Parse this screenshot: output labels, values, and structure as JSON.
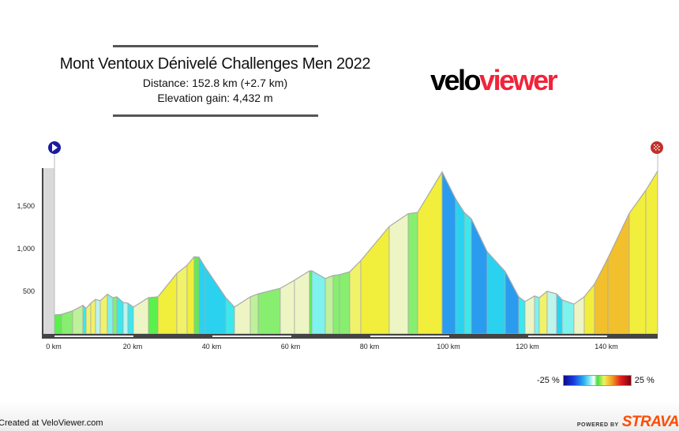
{
  "header": {
    "title": "Mont Ventoux Dénivelé Challenges Men 2022",
    "distance": "Distance: 152.8 km (+2.7 km)",
    "elevation_gain": "Elevation gain: 4,432 m"
  },
  "logo": {
    "part1": "velo",
    "part2": "viewer",
    "color_part2": "#f0243a"
  },
  "markers": {
    "start_icon": "play-icon",
    "finish_icon": "checkered-flag-icon",
    "start_color": "#1a1aa0",
    "finish_color": "#c0302a"
  },
  "chart_data": {
    "type": "area",
    "xlabel": "",
    "ylabel": "",
    "xlim": [
      0,
      152.8
    ],
    "ylim": [
      0,
      1950
    ],
    "x_ticks": [
      0,
      20,
      40,
      60,
      80,
      100,
      120,
      140
    ],
    "x_tick_labels": [
      "0 km",
      "20 km",
      "40 km",
      "60 km",
      "80 km",
      "100 km",
      "120 km",
      "140 km"
    ],
    "y_ticks": [
      500,
      1000,
      1500
    ],
    "y_tick_labels": [
      "500",
      "1,000",
      "1,500"
    ],
    "fill": "colored by gradient",
    "profile": [
      [
        0,
        222
      ],
      [
        1.8,
        230
      ],
      [
        4.6,
        270
      ],
      [
        7.2,
        335
      ],
      [
        8,
        300
      ],
      [
        9.2,
        360
      ],
      [
        10.4,
        405
      ],
      [
        11.6,
        390
      ],
      [
        13.4,
        465
      ],
      [
        14.8,
        425
      ],
      [
        15.8,
        435
      ],
      [
        17.4,
        370
      ],
      [
        18.6,
        360
      ],
      [
        20,
        315
      ],
      [
        23.8,
        425
      ],
      [
        26.2,
        435
      ],
      [
        31,
        710
      ],
      [
        33.6,
        805
      ],
      [
        35.4,
        905
      ],
      [
        36.6,
        900
      ],
      [
        38.2,
        780
      ],
      [
        43.4,
        425
      ],
      [
        45.6,
        315
      ],
      [
        49.6,
        435
      ],
      [
        51.6,
        470
      ],
      [
        57.2,
        535
      ],
      [
        60.8,
        630
      ],
      [
        64.6,
        740
      ],
      [
        65.2,
        740
      ],
      [
        68.6,
        650
      ],
      [
        70.6,
        685
      ],
      [
        72.2,
        695
      ],
      [
        74.8,
        730
      ],
      [
        77.6,
        860
      ],
      [
        84.8,
        1260
      ],
      [
        89.6,
        1410
      ],
      [
        92,
        1425
      ],
      [
        98.2,
        1900
      ],
      [
        101.6,
        1585
      ],
      [
        103.8,
        1425
      ],
      [
        105.6,
        1350
      ],
      [
        109.6,
        965
      ],
      [
        114.2,
        730
      ],
      [
        117.6,
        435
      ],
      [
        119.2,
        380
      ],
      [
        121.6,
        445
      ],
      [
        122.8,
        425
      ],
      [
        124.8,
        500
      ],
      [
        127.2,
        470
      ],
      [
        128.6,
        400
      ],
      [
        131.6,
        350
      ],
      [
        134.2,
        435
      ],
      [
        136.8,
        585
      ],
      [
        140.2,
        890
      ],
      [
        145.6,
        1415
      ],
      [
        149.8,
        1685
      ],
      [
        152.8,
        1910
      ]
    ]
  },
  "legend": {
    "min_label": "-25 %",
    "max_label": "25 %"
  },
  "footer": {
    "credit": "Created at VeloViewer.com",
    "powered_by": "POWERED BY",
    "brand": "STRAVA",
    "brand_color": "#fc4c02"
  }
}
